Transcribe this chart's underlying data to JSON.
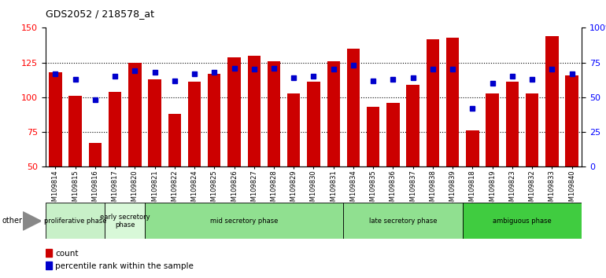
{
  "title": "GDS2052 / 218578_at",
  "samples": [
    "GSM109814",
    "GSM109815",
    "GSM109816",
    "GSM109817",
    "GSM109820",
    "GSM109821",
    "GSM109822",
    "GSM109824",
    "GSM109825",
    "GSM109826",
    "GSM109827",
    "GSM109828",
    "GSM109829",
    "GSM109830",
    "GSM109831",
    "GSM109834",
    "GSM109835",
    "GSM109836",
    "GSM109837",
    "GSM109838",
    "GSM109839",
    "GSM109818",
    "GSM109819",
    "GSM109823",
    "GSM109832",
    "GSM109833",
    "GSM109840"
  ],
  "counts": [
    118,
    101,
    67,
    104,
    125,
    113,
    88,
    111,
    117,
    129,
    130,
    126,
    103,
    111,
    126,
    135,
    93,
    96,
    109,
    142,
    143,
    76,
    103,
    111,
    103,
    144,
    116
  ],
  "percentiles": [
    67,
    63,
    48,
    65,
    69,
    68,
    62,
    67,
    68,
    71,
    70,
    71,
    64,
    65,
    70,
    73,
    62,
    63,
    64,
    70,
    70,
    42,
    60,
    65,
    63,
    70,
    67
  ],
  "phases": [
    {
      "name": "proliferative phase",
      "start": 0,
      "end": 3,
      "color": "#c8f0c8"
    },
    {
      "name": "early secretory\nphase",
      "start": 3,
      "end": 5,
      "color": "#d8f8d8"
    },
    {
      "name": "mid secretory phase",
      "start": 5,
      "end": 15,
      "color": "#90e090"
    },
    {
      "name": "late secretory phase",
      "start": 15,
      "end": 21,
      "color": "#90e090"
    },
    {
      "name": "ambiguous phase",
      "start": 21,
      "end": 27,
      "color": "#40cc40"
    }
  ],
  "ylim_left": [
    50,
    150
  ],
  "ylim_right": [
    0,
    100
  ],
  "bar_color": "#cc0000",
  "dot_color": "#0000cc",
  "background_color": "#ffffff",
  "yticks_left": [
    50,
    75,
    100,
    125,
    150
  ],
  "yticks_right": [
    0,
    25,
    50,
    75,
    100
  ],
  "ytick_labels_right": [
    "0",
    "25",
    "50",
    "75",
    "100%"
  ]
}
